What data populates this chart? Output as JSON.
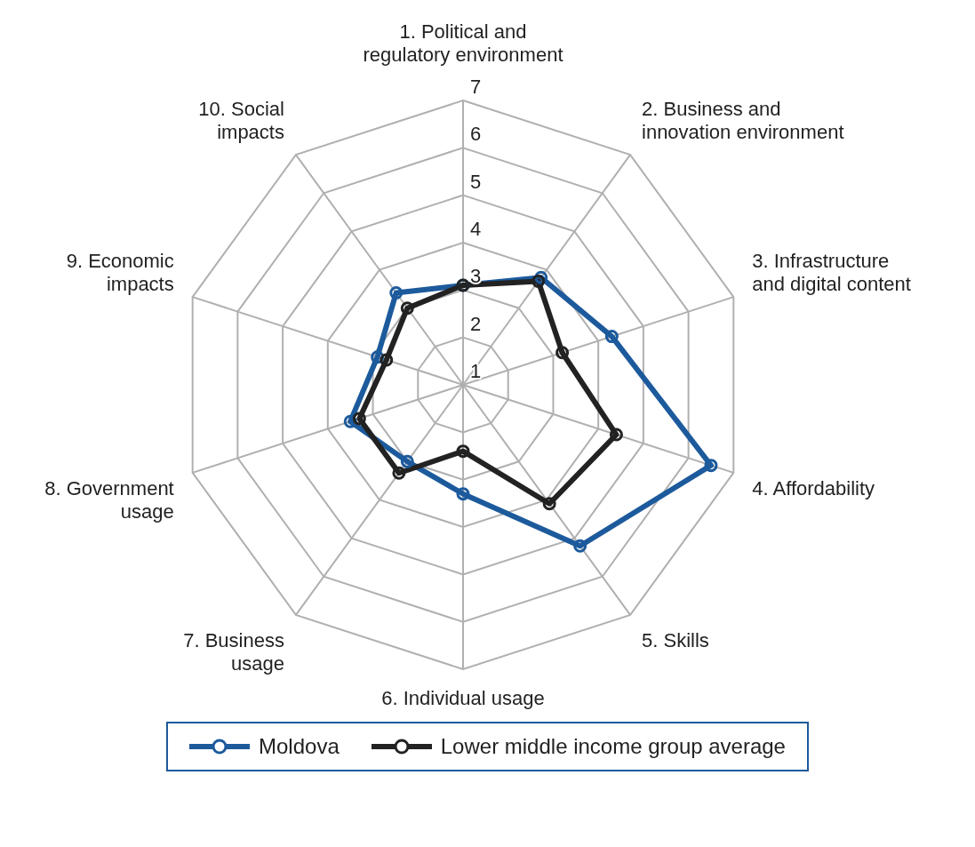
{
  "chart_data": {
    "type": "radar",
    "categories": [
      "1. Political and regulatory environment",
      "2. Business and innovation environment",
      "3. Infrastructure and digital content",
      "4. Affordability",
      "5. Skills",
      "6. Individual usage",
      "7. Business usage",
      "8. Government usage",
      "9. Economic impacts",
      "10. Social impacts"
    ],
    "series": [
      {
        "name": "Moldova",
        "color": "#1c5a9c",
        "values": [
          3.1,
          3.8,
          4.3,
          6.5,
          5.2,
          3.3,
          3.0,
          3.5,
          2.9,
          3.4
        ]
      },
      {
        "name": "Lower middle income group average",
        "color": "#222222",
        "values": [
          3.1,
          3.7,
          3.2,
          4.4,
          4.1,
          2.4,
          3.3,
          3.3,
          2.7,
          3.0
        ]
      }
    ],
    "ylim": [
      1,
      7
    ],
    "yticks": [
      1,
      2,
      3,
      4,
      5,
      6,
      7
    ],
    "grid": true,
    "legend": "bottom",
    "marker": "circle",
    "line_style": "solid"
  }
}
